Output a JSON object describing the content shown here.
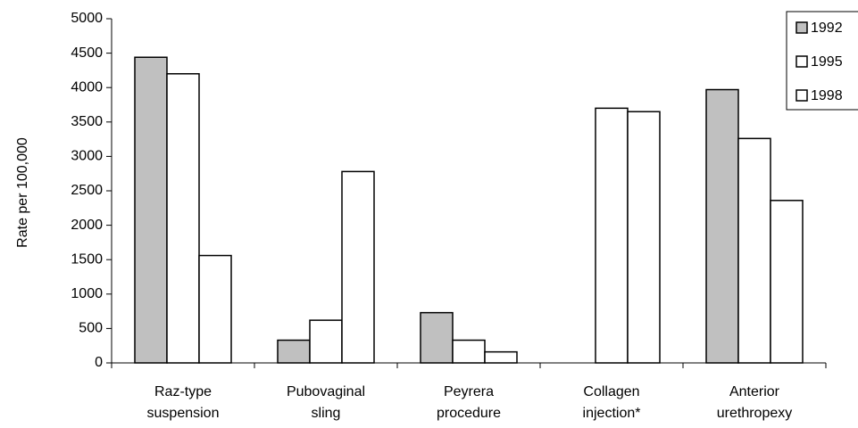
{
  "chart_data": {
    "type": "bar",
    "categories": [
      [
        "Raz-type",
        "suspension"
      ],
      [
        "Pubovaginal",
        "sling"
      ],
      [
        "Peyrera",
        "procedure"
      ],
      [
        "Collagen",
        "injection*"
      ],
      [
        "Anterior",
        "urethropexy"
      ]
    ],
    "series": [
      {
        "name": "1992",
        "color": "#c0c0c0",
        "values": [
          4440,
          330,
          730,
          null,
          3970
        ]
      },
      {
        "name": "1995",
        "color": "#ffffff",
        "values": [
          4200,
          620,
          330,
          3700,
          3260
        ]
      },
      {
        "name": "1998",
        "color": "#ffffff",
        "values": [
          1560,
          2780,
          160,
          3650,
          2360
        ]
      }
    ],
    "ylabel": "Rate per 100,000",
    "xlabel": "",
    "ylim": [
      0,
      5000
    ],
    "yticks": [
      0,
      500,
      1000,
      1500,
      2000,
      2500,
      3000,
      3500,
      4000,
      4500,
      5000
    ],
    "grid": false,
    "legend_position": "top-right"
  }
}
